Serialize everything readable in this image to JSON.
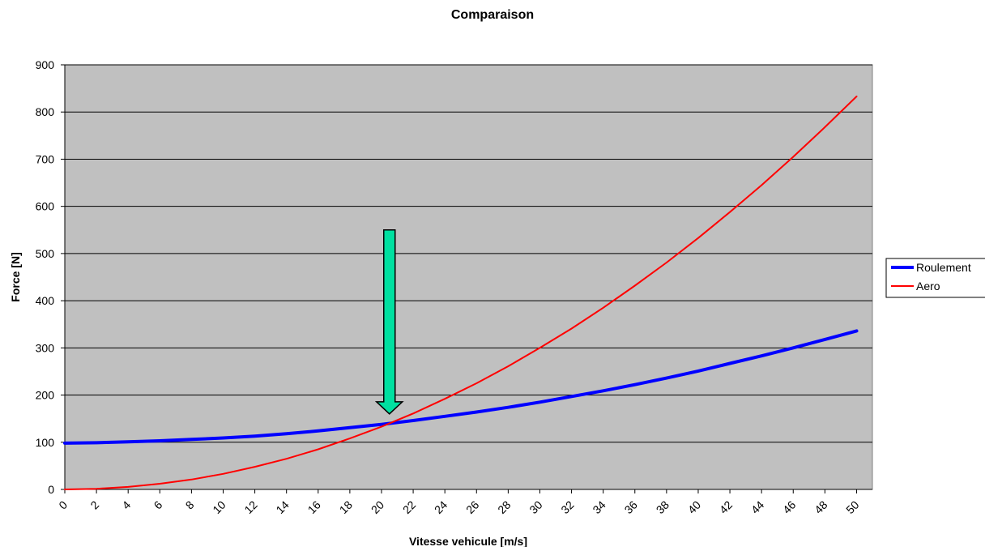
{
  "chart_data": {
    "type": "line",
    "title": "Comparaison",
    "xlabel": "Vitesse vehicule [m/s]",
    "ylabel": "Force [N]",
    "xlim": [
      0,
      51
    ],
    "ylim": [
      0,
      900
    ],
    "x_ticks": [
      "0",
      "2",
      "4",
      "6",
      "8",
      "10",
      "12",
      "14",
      "16",
      "18",
      "20",
      "22",
      "24",
      "26",
      "28",
      "30",
      "32",
      "34",
      "36",
      "38",
      "40",
      "42",
      "44",
      "46",
      "48",
      "50"
    ],
    "y_ticks": [
      "0",
      "100",
      "200",
      "300",
      "400",
      "500",
      "600",
      "700",
      "800",
      "900"
    ],
    "grid": "horizontal",
    "plot_background": "#c0c0c0",
    "legend_position": "right",
    "x": [
      0,
      2,
      4,
      6,
      8,
      10,
      12,
      14,
      16,
      18,
      20,
      22,
      24,
      26,
      28,
      30,
      32,
      34,
      36,
      38,
      40,
      42,
      44,
      46,
      48,
      50
    ],
    "series": [
      {
        "name": "Roulement",
        "color": "#0000ff",
        "values": [
          98,
          99,
          101,
          103,
          106,
          109,
          113,
          118,
          124,
          131,
          138,
          146,
          155,
          164,
          174,
          185,
          197,
          209,
          222,
          236,
          251,
          267,
          283,
          300,
          318,
          336
        ]
      },
      {
        "name": "Aero",
        "color": "#ff0000",
        "values": [
          0,
          1.3,
          5.3,
          12,
          21,
          33,
          48,
          65,
          85,
          108,
          133,
          161,
          192,
          225,
          261,
          300,
          341,
          385,
          432,
          481,
          533,
          588,
          645,
          705,
          768,
          833
        ]
      }
    ],
    "annotation": {
      "type": "arrow",
      "color": "#00e0a0",
      "x": 20.5,
      "y_from": 550,
      "y_to": 160
    }
  }
}
